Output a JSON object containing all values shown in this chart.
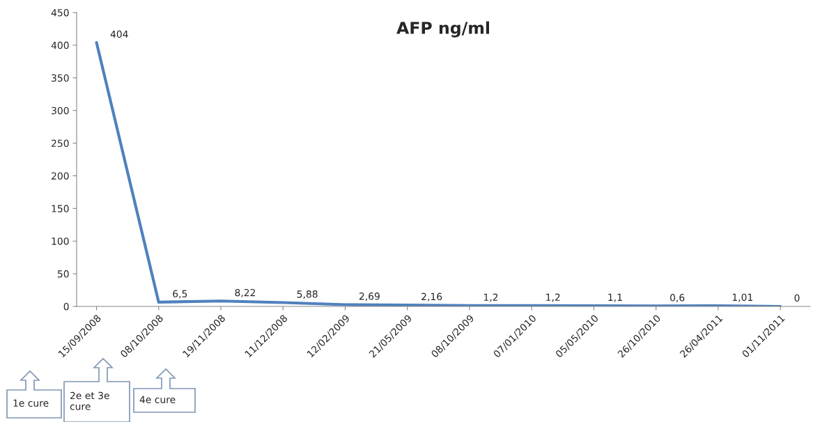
{
  "chart_data": {
    "type": "line",
    "title": "AFP ng/ml",
    "categories": [
      "15/09/2008",
      "08/10/2008",
      "19/11/2008",
      "11/12/2008",
      "12/02/2009",
      "21/05/2009",
      "08/10/2009",
      "07/01/2010",
      "05/05/2010",
      "26/10/2010",
      "26/04/2011",
      "01/11/2011"
    ],
    "series": [
      {
        "color": "#4f81bd",
        "values": [
          404,
          6.5,
          8.22,
          5.88,
          2.69,
          2.16,
          1.2,
          1.2,
          1.1,
          0.6,
          1.01,
          0
        ],
        "value_labels": [
          "404",
          "6,5",
          "8,22",
          "5,88",
          "2,69",
          "2,16",
          "1,2",
          "1,2",
          "1,1",
          "0,6",
          "1,01",
          "0"
        ]
      }
    ],
    "ylim": [
      0,
      450
    ],
    "yticks": [
      0,
      50,
      100,
      150,
      200,
      250,
      300,
      350,
      400,
      450
    ],
    "grid": false,
    "legend": false,
    "marker": "none",
    "line_style": "solid",
    "annotations": [
      "1e cure",
      "2e et 3e cure",
      "4e cure"
    ]
  }
}
